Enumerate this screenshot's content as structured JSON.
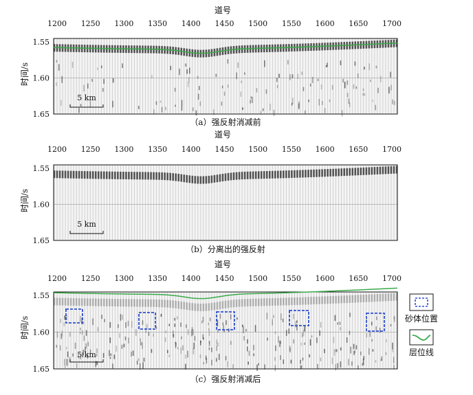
{
  "colors": {
    "background": "#ffffff",
    "trace": "#4a4a4a",
    "horizon": "#3aaa4a",
    "sand_box": "#2f4fd0",
    "frame": "#111111"
  },
  "panels": [
    {
      "id": "a",
      "xlabel": "道号",
      "ylabel": "时间/s",
      "x_ticks": [
        "1200",
        "1250",
        "1300",
        "1350",
        "1400",
        "1450",
        "1500",
        "1550",
        "1600",
        "1650",
        "1700"
      ],
      "y_ticks": [
        "1.55",
        "1.60",
        "1.65"
      ],
      "scale_bar": "5 km",
      "caption": "（a）强反射消减前",
      "show_horizon": true,
      "show_sand_boxes": false
    },
    {
      "id": "b",
      "xlabel": "道号",
      "ylabel": "时间/s",
      "x_ticks": [
        "1200",
        "1250",
        "1300",
        "1350",
        "1400",
        "1450",
        "1500",
        "1550",
        "1600",
        "1650",
        "1700"
      ],
      "y_ticks": [
        "1.55",
        "1.60",
        "1.65"
      ],
      "scale_bar": "5 km",
      "caption": "（b）分离出的强反射",
      "show_horizon": false,
      "show_sand_boxes": false
    },
    {
      "id": "c",
      "xlabel": "道号",
      "ylabel": "时间/s",
      "x_ticks": [
        "1200",
        "1250",
        "1300",
        "1350",
        "1400",
        "1450",
        "1500",
        "1550",
        "1600",
        "1650",
        "1700"
      ],
      "y_ticks": [
        "1.55",
        "1.60",
        "1.65"
      ],
      "scale_bar": "5 km",
      "caption": "（c）强反射消减后",
      "show_horizon": true,
      "show_sand_boxes": true
    }
  ],
  "legend": {
    "items": [
      {
        "label": "砂体位置",
        "icon": "dashed-box-icon"
      },
      {
        "label": "层位线",
        "icon": "horizon-line-icon"
      }
    ]
  }
}
